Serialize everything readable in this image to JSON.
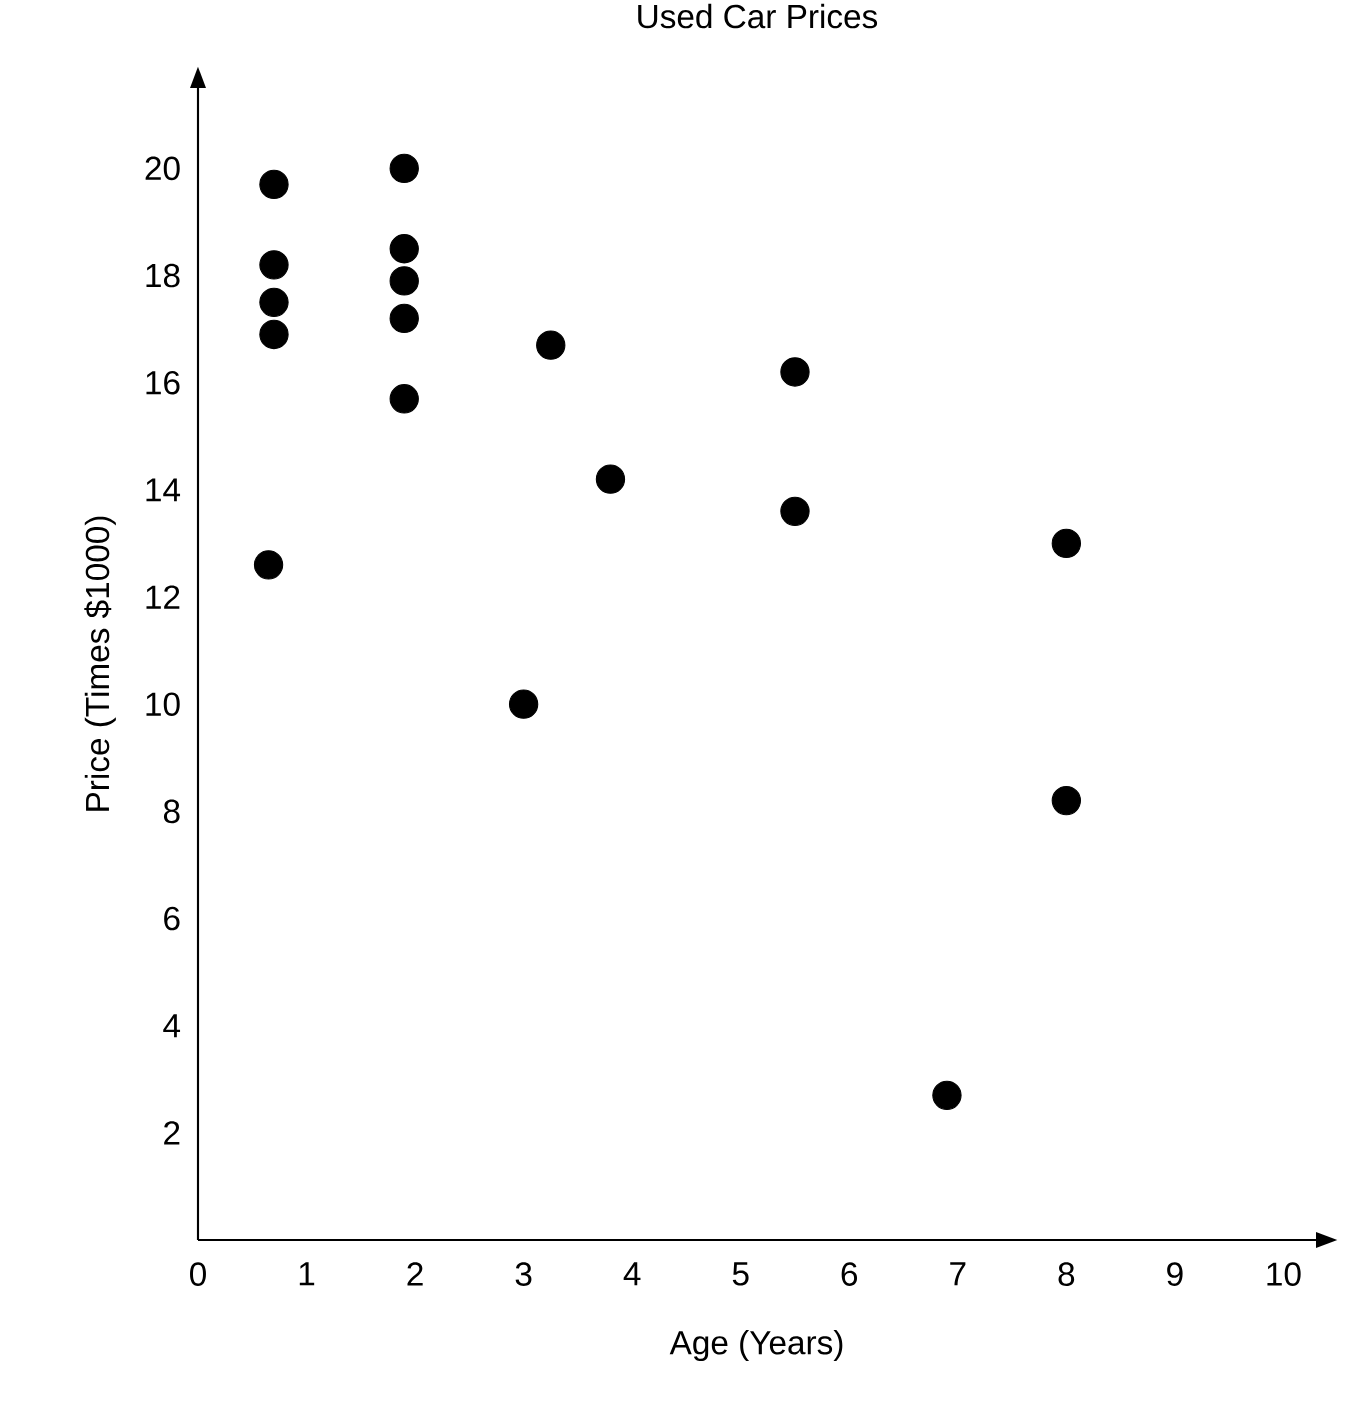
{
  "chart_data": {
    "type": "scatter",
    "title": "Used Car Prices",
    "xlabel": "Age (Years)",
    "ylabel": "Price (Times $1000)",
    "x": [
      0.7,
      0.7,
      0.7,
      0.7,
      0.65,
      1.9,
      1.9,
      1.9,
      1.9,
      1.9,
      3.25,
      3.8,
      3.0,
      5.5,
      5.5,
      8.0,
      8.0,
      6.9
    ],
    "values": [
      19.7,
      18.2,
      17.5,
      16.9,
      12.6,
      20.0,
      18.5,
      17.9,
      17.2,
      15.7,
      16.7,
      14.2,
      10.0,
      16.2,
      13.6,
      13.0,
      8.2,
      2.7
    ],
    "color": "#000000",
    "marker": "circle",
    "xlim": [
      0,
      10.3
    ],
    "ylim": [
      0,
      21.5
    ],
    "xticks": [
      0,
      1,
      2,
      3,
      4,
      5,
      6,
      7,
      8,
      9,
      10
    ],
    "yticks": [
      2,
      4,
      6,
      8,
      10,
      12,
      14,
      16,
      18,
      20
    ]
  }
}
